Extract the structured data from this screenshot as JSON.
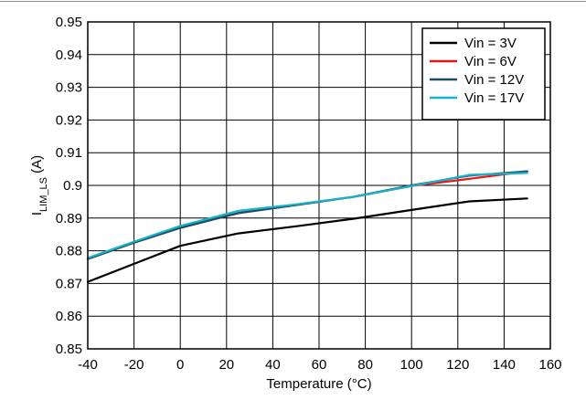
{
  "chart_data": {
    "type": "line",
    "title": "",
    "xlabel": "Temperature (°C)",
    "ylabel": {
      "main": "I",
      "sub": "LIM_LS",
      "unit": " (A)"
    },
    "xlim": [
      -40,
      160
    ],
    "ylim": [
      0.85,
      0.95
    ],
    "xticks": [
      -40,
      -20,
      0,
      20,
      40,
      60,
      80,
      100,
      120,
      140,
      160
    ],
    "yticks": [
      "0.85",
      "0.86",
      "0.87",
      "0.88",
      "0.89",
      "0.9",
      "0.91",
      "0.92",
      "0.93",
      "0.94",
      "0.95"
    ],
    "grid": true,
    "legend_position": "top-right",
    "series": [
      {
        "name": "Vin = 3V",
        "color": "#000000",
        "x": [
          -40,
          -20,
          0,
          25,
          50,
          75,
          100,
          125,
          150
        ],
        "y": [
          0.8705,
          0.876,
          0.8815,
          0.8853,
          0.8875,
          0.8898,
          0.8925,
          0.8951,
          0.896
        ]
      },
      {
        "name": "Vin = 6V",
        "color": "#e8141b",
        "x": [
          -40,
          -20,
          0,
          25,
          50,
          75,
          100,
          125,
          150
        ],
        "y": [
          0.8775,
          0.8825,
          0.887,
          0.8915,
          0.894,
          0.8965,
          0.8998,
          0.902,
          0.9043
        ]
      },
      {
        "name": "Vin = 12V",
        "color": "#1a4d66",
        "x": [
          -40,
          -20,
          0,
          25,
          50,
          75,
          100,
          125,
          150
        ],
        "y": [
          0.8775,
          0.8825,
          0.887,
          0.8915,
          0.894,
          0.8965,
          0.9,
          0.903,
          0.9043
        ]
      },
      {
        "name": "Vin = 17V",
        "color": "#17b3c9",
        "x": [
          -40,
          -20,
          0,
          25,
          50,
          75,
          100,
          125,
          150
        ],
        "y": [
          0.8778,
          0.8828,
          0.8876,
          0.8922,
          0.8942,
          0.8965,
          0.8998,
          0.9032,
          0.9038
        ]
      }
    ]
  }
}
